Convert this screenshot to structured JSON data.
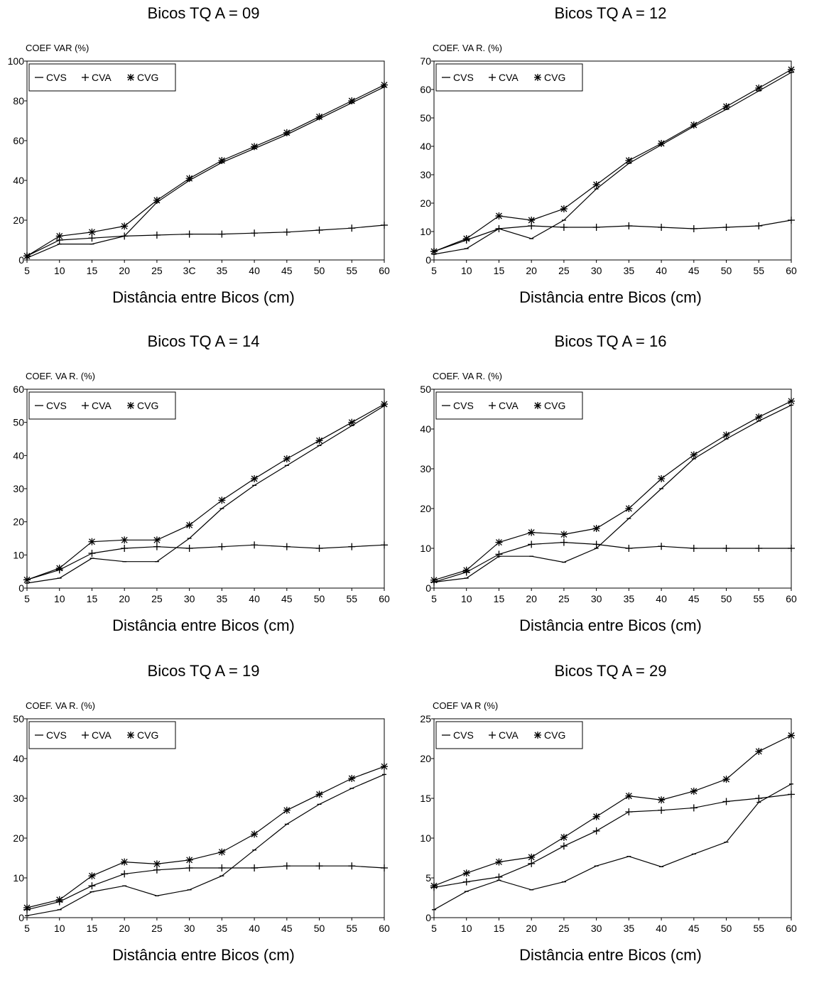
{
  "chart_data": [
    {
      "type": "line",
      "title": "Bicos TQ A = 09",
      "ylabel": "COEF VAR  (%)",
      "xlabel": "Distância entre Bicos (cm)",
      "x": [
        5,
        10,
        15,
        20,
        25,
        30,
        35,
        40,
        45,
        50,
        55,
        60
      ],
      "xlim": [
        5,
        60
      ],
      "ylim": [
        0,
        100
      ],
      "yticks": [
        0,
        20,
        40,
        60,
        80,
        100
      ],
      "xtick_labels": [
        "5",
        "10",
        "15",
        "20",
        "25",
        "3C",
        "35",
        "40",
        "45",
        "50",
        "55",
        "60"
      ],
      "legend": "top-left",
      "grid": false,
      "series": [
        {
          "name": "CVS",
          "marker": "dash",
          "values": [
            1,
            8,
            8,
            12,
            29,
            40,
            49,
            56,
            63,
            71,
            79,
            87
          ]
        },
        {
          "name": "CVA",
          "marker": "plus",
          "values": [
            2,
            10,
            11,
            12,
            12.5,
            13,
            13,
            13.5,
            14,
            15,
            16,
            17.5
          ]
        },
        {
          "name": "CVG",
          "marker": "star",
          "values": [
            2,
            12,
            14,
            17,
            30,
            41,
            50,
            57,
            64,
            72,
            80,
            88
          ]
        }
      ]
    },
    {
      "type": "line",
      "title": "Bicos TQ A = 12",
      "ylabel": "COEF. VA R.  (%)",
      "xlabel": "Distância entre Bicos (cm)",
      "x": [
        5,
        10,
        15,
        20,
        25,
        30,
        35,
        40,
        45,
        50,
        55,
        60
      ],
      "xlim": [
        5,
        60
      ],
      "ylim": [
        0,
        70
      ],
      "yticks": [
        0,
        10,
        20,
        30,
        40,
        50,
        60,
        70
      ],
      "xtick_labels": [
        "5",
        "10",
        "15",
        "20",
        "25",
        "30",
        "35",
        "40",
        "45",
        "50",
        "55",
        "60"
      ],
      "legend": "top-left",
      "grid": false,
      "series": [
        {
          "name": "CVS",
          "marker": "dash",
          "values": [
            2,
            4,
            11,
            7.5,
            14,
            25,
            34,
            40.5,
            47,
            53,
            59.5,
            66
          ]
        },
        {
          "name": "CVA",
          "marker": "plus",
          "values": [
            3,
            7,
            11,
            12,
            11.5,
            11.5,
            12,
            11.5,
            11,
            11.5,
            12,
            14
          ]
        },
        {
          "name": "CVG",
          "marker": "star",
          "values": [
            3,
            7.5,
            15.5,
            14,
            18,
            26.5,
            35,
            41,
            47.5,
            54,
            60.5,
            67
          ]
        }
      ]
    },
    {
      "type": "line",
      "title": "Bicos TQ A = 14",
      "ylabel": "COEF. VA R.  (%)",
      "xlabel": "Distância entre Bicos (cm)",
      "x": [
        5,
        10,
        15,
        20,
        25,
        30,
        35,
        40,
        45,
        50,
        55,
        60
      ],
      "xlim": [
        5,
        60
      ],
      "ylim": [
        0,
        60
      ],
      "yticks": [
        0,
        10,
        20,
        30,
        40,
        50,
        60
      ],
      "xtick_labels": [
        "5",
        "10",
        "15",
        "20",
        "25",
        "30",
        "35",
        "40",
        "45",
        "50",
        "55",
        "60"
      ],
      "legend": "top-left",
      "grid": false,
      "series": [
        {
          "name": "CVS",
          "marker": "dash",
          "values": [
            1.5,
            3,
            9,
            8,
            8,
            15,
            24,
            31,
            37,
            43,
            49,
            55
          ]
        },
        {
          "name": "CVA",
          "marker": "plus",
          "values": [
            2.5,
            5.5,
            10.5,
            12,
            12.5,
            12,
            12.5,
            13,
            12.5,
            12,
            12.5,
            13
          ]
        },
        {
          "name": "CVG",
          "marker": "star",
          "values": [
            2.5,
            6,
            14,
            14.5,
            14.5,
            19,
            26.5,
            33,
            39,
            44.5,
            50,
            55.5
          ]
        }
      ]
    },
    {
      "type": "line",
      "title": "Bicos TQ A = 16",
      "ylabel": "COEF. VA R.  (%)",
      "xlabel": "Distância entre Bicos (cm)",
      "x": [
        5,
        10,
        15,
        20,
        25,
        30,
        35,
        40,
        45,
        50,
        55,
        60
      ],
      "xlim": [
        5,
        60
      ],
      "ylim": [
        0,
        50
      ],
      "yticks": [
        0,
        10,
        20,
        30,
        40,
        50
      ],
      "xtick_labels": [
        "5",
        "10",
        "15",
        "20",
        "25",
        "30",
        "35",
        "40",
        "45",
        "50",
        "55",
        "60"
      ],
      "legend": "top-left",
      "grid": false,
      "series": [
        {
          "name": "CVS",
          "marker": "dash",
          "values": [
            1.5,
            2.5,
            8,
            8,
            6.5,
            10,
            17.5,
            25,
            32.5,
            37.5,
            42,
            46
          ]
        },
        {
          "name": "CVA",
          "marker": "plus",
          "values": [
            1.5,
            4,
            8.5,
            11,
            11.5,
            11,
            10,
            10.5,
            10,
            10,
            10,
            10
          ]
        },
        {
          "name": "CVG",
          "marker": "star",
          "values": [
            2,
            4.5,
            11.5,
            14,
            13.5,
            15,
            20,
            27.5,
            33.5,
            38.5,
            43,
            47
          ]
        }
      ]
    },
    {
      "type": "line",
      "title": "Bicos TQ A = 19",
      "ylabel": "COEF. VA R.  (%)",
      "xlabel": "Distância entre Bicos (cm)",
      "x": [
        5,
        10,
        15,
        20,
        25,
        30,
        35,
        40,
        45,
        50,
        55,
        60
      ],
      "xlim": [
        5,
        60
      ],
      "ylim": [
        0,
        50
      ],
      "yticks": [
        0,
        10,
        20,
        30,
        40,
        50
      ],
      "xtick_labels": [
        "5",
        "10",
        "15",
        "20",
        "25",
        "30",
        "35",
        "40",
        "45",
        "50",
        "55",
        "60"
      ],
      "legend": "top-left",
      "grid": false,
      "series": [
        {
          "name": "CVS",
          "marker": "dash",
          "values": [
            0.5,
            2,
            6.5,
            8,
            5.5,
            7,
            10.5,
            17,
            23.5,
            28.5,
            32.5,
            36
          ]
        },
        {
          "name": "CVA",
          "marker": "plus",
          "values": [
            2,
            4,
            8,
            11,
            12,
            12.5,
            12.5,
            12.5,
            13,
            13,
            13,
            12.5
          ]
        },
        {
          "name": "CVG",
          "marker": "star",
          "values": [
            2.5,
            4.5,
            10.5,
            14,
            13.5,
            14.5,
            16.5,
            21,
            27,
            31,
            35,
            38
          ]
        }
      ]
    },
    {
      "type": "line",
      "title": "Bicos TQ A = 29",
      "ylabel": "COEF VA R  (%)",
      "xlabel": "Distância entre Bicos (cm)",
      "x": [
        5,
        10,
        15,
        20,
        25,
        30,
        35,
        40,
        45,
        50,
        55,
        60
      ],
      "xlim": [
        5,
        60
      ],
      "ylim": [
        0,
        25
      ],
      "yticks": [
        0,
        5,
        10,
        15,
        20,
        25
      ],
      "xtick_labels": [
        "5",
        "10",
        "15",
        "20",
        "25",
        "30",
        "35",
        "40",
        "45",
        "50",
        "55",
        "60"
      ],
      "legend": "top-left",
      "grid": false,
      "series": [
        {
          "name": "CVS",
          "marker": "dash",
          "values": [
            1,
            3.3,
            4.7,
            3.5,
            4.5,
            6.5,
            7.7,
            6.4,
            8,
            9.5,
            14.5,
            16.8
          ]
        },
        {
          "name": "CVA",
          "marker": "plus",
          "values": [
            3.8,
            4.5,
            5.1,
            6.8,
            9,
            10.9,
            13.3,
            13.5,
            13.8,
            14.6,
            15,
            15.5
          ]
        },
        {
          "name": "CVG",
          "marker": "star",
          "values": [
            4,
            5.6,
            7,
            7.6,
            10.1,
            12.7,
            15.3,
            14.8,
            15.9,
            17.4,
            20.9,
            22.9
          ]
        }
      ]
    }
  ]
}
